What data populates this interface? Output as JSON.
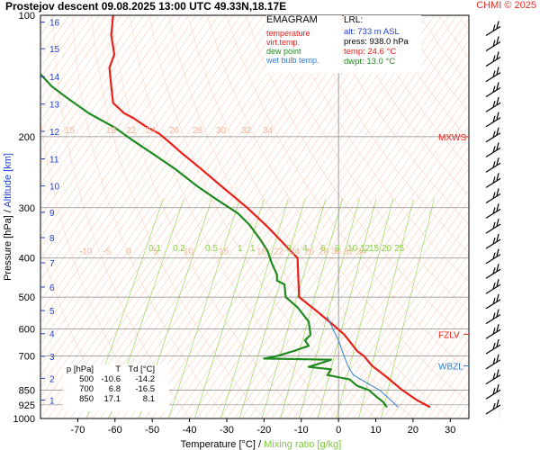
{
  "header": {
    "title": "Prostejov   descent   09.08.2025 13:00 UTC   49.33N,18.17E",
    "credit": "CHMI © 2025"
  },
  "legend": {
    "title": "EMAGRAM",
    "items": [
      {
        "label": "temperature",
        "color": "#e8201a"
      },
      {
        "label": "virt.temp.",
        "color": "#e8201a"
      },
      {
        "label": "dew point",
        "color": "#1f8a1f"
      },
      {
        "label": "wet bulb temp.",
        "color": "#2f7fd6"
      }
    ]
  },
  "lrl": {
    "title": "LRL:",
    "lines": [
      {
        "text": "alt: 733 m ASL",
        "color": "#1f3fd0"
      },
      {
        "text": "press: 938.0 hPa",
        "color": "#000000"
      },
      {
        "text": "temp: 24.6 °C",
        "color": "#e8201a"
      },
      {
        "text": "dwpt: 13.0 °C",
        "color": "#1f8a1f"
      }
    ]
  },
  "level_table": {
    "headers": [
      "p [hPa]",
      "T",
      "Td [°C]"
    ],
    "rows": [
      [
        "500",
        "-10.6",
        "-14.2"
      ],
      [
        "700",
        "6.8",
        "-16.5"
      ],
      [
        "850",
        "17.1",
        "8.1"
      ]
    ]
  },
  "markers": [
    {
      "label": "MXWS",
      "pressure": 200,
      "color": "#e8201a"
    },
    {
      "label": "FZLV",
      "pressure": 618,
      "color": "#e8201a"
    },
    {
      "label": "WBZL",
      "pressure": 740,
      "color": "#2f7fd6"
    }
  ],
  "chart_data": {
    "type": "line",
    "xlabel": "Temperature [°C]",
    "xlabel_sep": "/",
    "xlabel2": "Mixing ratio [g/kg]",
    "ylabel": "Pressure [hPa]",
    "ylabel_sep": "/",
    "ylabel2": "Altitude [km]",
    "xlim": [
      -80,
      35
    ],
    "ylim": [
      1000,
      100
    ],
    "y_scale": "log",
    "x_ticks": [
      -70,
      -60,
      -50,
      -40,
      -30,
      -20,
      -10,
      0,
      10,
      20,
      30
    ],
    "pressure_ticks": [
      100,
      200,
      300,
      400,
      500,
      600,
      700,
      850,
      925,
      1000
    ],
    "altitude_ticks": [
      {
        "km": "1",
        "p": 900
      },
      {
        "km": "2",
        "p": 795
      },
      {
        "km": "3",
        "p": 701
      },
      {
        "km": "4",
        "p": 616
      },
      {
        "km": "5",
        "p": 540
      },
      {
        "km": "6",
        "p": 472
      },
      {
        "km": "7",
        "p": 411
      },
      {
        "km": "8",
        "p": 356
      },
      {
        "km": "9",
        "p": 308
      },
      {
        "km": "10",
        "p": 265
      },
      {
        "km": "11",
        "p": 227
      },
      {
        "km": "12",
        "p": 194
      },
      {
        "km": "13",
        "p": 166
      },
      {
        "km": "14",
        "p": 142
      },
      {
        "km": "15",
        "p": 121
      },
      {
        "km": "16",
        "p": 104
      }
    ],
    "isotherm_labels_upper": {
      "pressure": 200,
      "values": [
        "15",
        "18",
        "22",
        "24",
        "26",
        "28",
        "30",
        "32",
        "34"
      ]
    },
    "isotherm_labels_lower": {
      "pressure": 400,
      "values": [
        "-10",
        "-5",
        "0",
        "5",
        "10",
        "15",
        "18",
        "22",
        "24",
        "26",
        "28",
        "30",
        "32",
        "34"
      ]
    },
    "mixing_ratio_labels": [
      "0.1",
      "0.2",
      "0.5",
      "1",
      "1",
      "3",
      "4",
      "6",
      "8",
      "10",
      "12",
      "15",
      "20",
      "25"
    ],
    "series": [
      {
        "name": "temperature",
        "color": "#e8201a",
        "points": [
          [
            -60.5,
            100
          ],
          [
            -61.0,
            112
          ],
          [
            -60.2,
            125
          ],
          [
            -61.5,
            135
          ],
          [
            -61.0,
            150
          ],
          [
            -60.5,
            165
          ],
          [
            -57.5,
            175
          ],
          [
            -55.0,
            180
          ],
          [
            -52.0,
            188
          ],
          [
            -48.0,
            197
          ],
          [
            -45.0,
            208
          ],
          [
            -42.0,
            220
          ],
          [
            -37.0,
            240
          ],
          [
            -31.5,
            265
          ],
          [
            -24.5,
            300
          ],
          [
            -19.0,
            335
          ],
          [
            -14.5,
            370
          ],
          [
            -11.0,
            400
          ],
          [
            -10.6,
            500
          ],
          [
            -6.0,
            540
          ],
          [
            -2.0,
            580
          ],
          [
            1.5,
            618
          ],
          [
            5.0,
            680
          ],
          [
            6.8,
            700
          ],
          [
            9.0,
            740
          ],
          [
            13.0,
            790
          ],
          [
            17.1,
            850
          ],
          [
            21.0,
            900
          ],
          [
            24.6,
            938
          ]
        ]
      },
      {
        "name": "dew point",
        "color": "#1f8a1f",
        "points": [
          [
            -80.0,
            140
          ],
          [
            -77.0,
            150
          ],
          [
            -73.0,
            160
          ],
          [
            -67.0,
            175
          ],
          [
            -60.0,
            190
          ],
          [
            -55.0,
            205
          ],
          [
            -50.0,
            220
          ],
          [
            -44.0,
            240
          ],
          [
            -38.0,
            265
          ],
          [
            -33.0,
            285
          ],
          [
            -27.0,
            310
          ],
          [
            -24.0,
            330
          ],
          [
            -21.0,
            360
          ],
          [
            -19.0,
            385
          ],
          [
            -18.0,
            410
          ],
          [
            -16.5,
            440
          ],
          [
            -16.5,
            455
          ],
          [
            -14.5,
            465
          ],
          [
            -14.2,
            500
          ],
          [
            -11.0,
            530
          ],
          [
            -8.0,
            575
          ],
          [
            -7.5,
            620
          ],
          [
            -9.0,
            640
          ],
          [
            -8.0,
            660
          ],
          [
            -12.0,
            680
          ],
          [
            -16.5,
            700
          ],
          [
            -20.0,
            710
          ],
          [
            -2.0,
            715
          ],
          [
            -5.0,
            730
          ],
          [
            -8.0,
            745
          ],
          [
            -2.0,
            755
          ],
          [
            -3.0,
            780
          ],
          [
            3.0,
            800
          ],
          [
            5.0,
            830
          ],
          [
            8.1,
            850
          ],
          [
            10.0,
            880
          ],
          [
            12.0,
            910
          ],
          [
            13.0,
            938
          ]
        ]
      },
      {
        "name": "wet bulb temp.",
        "color": "#2f7fd6",
        "points": [
          [
            -3.0,
            560
          ],
          [
            -1.5,
            600
          ],
          [
            0.0,
            640
          ],
          [
            1.5,
            700
          ],
          [
            2.5,
            740
          ],
          [
            4.0,
            780
          ],
          [
            8.0,
            820
          ],
          [
            11.0,
            850
          ],
          [
            14.0,
            900
          ],
          [
            16.0,
            938
          ]
        ]
      }
    ]
  }
}
